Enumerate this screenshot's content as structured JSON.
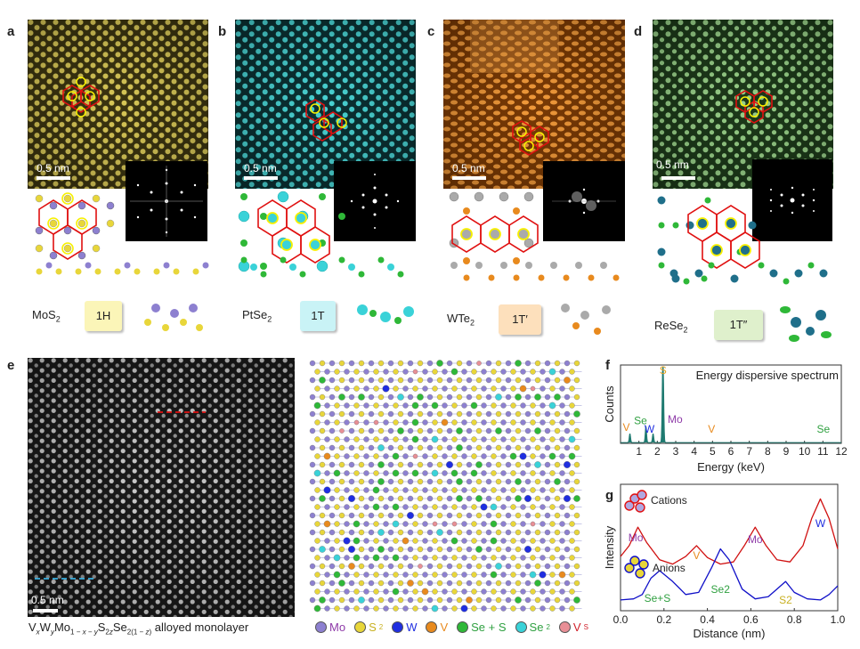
{
  "panels": {
    "a": {
      "letter": "a",
      "scale": "0.5 nm",
      "material": "MoS",
      "material_sub": "2",
      "phase": "1H"
    },
    "b": {
      "letter": "b",
      "scale": "0.5 nm",
      "material": "PtSe",
      "material_sub": "2",
      "phase": "1T"
    },
    "c": {
      "letter": "c",
      "scale": "0.5 nm",
      "material": "WTe",
      "material_sub": "2",
      "phase": "1T′"
    },
    "d": {
      "letter": "d",
      "scale": "0.5 nm",
      "material": "ReSe",
      "material_sub": "2",
      "phase": "1T″"
    },
    "e": {
      "letter": "e",
      "scale": "0.5 nm",
      "caption_tail": " alloyed monolayer"
    },
    "f": {
      "letter": "f"
    },
    "g": {
      "letter": "g"
    }
  },
  "colors": {
    "a": "#c8b84a",
    "b": "#3fc9c9",
    "c": "#f08a1e",
    "d": "#86c478",
    "phase_a": "#fbf5b8",
    "phase_b": "#c9f3f6",
    "phase_c": "#fde0bc",
    "phase_d": "#dff0cc",
    "mo": "#8d80d0",
    "s": "#e8d63a",
    "w": "#1f2ee0",
    "v": "#e88a1e",
    "se": "#2fb838",
    "se2": "#3ad2d8",
    "vs": "#e88f96"
  },
  "legend": [
    {
      "name": "legend-mo",
      "label": "Mo",
      "color": "#8d80d0"
    },
    {
      "name": "legend-s2",
      "label": "S",
      "sub": "2",
      "color": "#e8d63a"
    },
    {
      "name": "legend-w",
      "label": "W",
      "color": "#1f2ee0"
    },
    {
      "name": "legend-v",
      "label": "V",
      "color": "#e88a1e"
    },
    {
      "name": "legend-se-s",
      "label": "Se + S",
      "color": "#2fb838"
    },
    {
      "name": "legend-se2",
      "label": "Se",
      "sub": "2",
      "color": "#3ad2d8"
    },
    {
      "name": "legend-vs",
      "label": "V",
      "sub": "S",
      "color": "#e88f96"
    }
  ],
  "chart_data": [
    {
      "type": "line",
      "title": "Energy dispersive spectrum",
      "xlabel": "Energy (keV)",
      "ylabel": "Counts",
      "xlim": [
        0,
        12
      ],
      "xticks": [
        1,
        2,
        3,
        4,
        5,
        6,
        7,
        8,
        9,
        10,
        11,
        12
      ],
      "peaks": [
        {
          "label": "S",
          "x": 2.31,
          "y": 1.0
        },
        {
          "label": "Mo",
          "x": 2.29,
          "y": 0.25
        },
        {
          "label": "Se",
          "x": 1.38,
          "y": 0.22
        },
        {
          "label": "W",
          "x": 1.77,
          "y": 0.12
        },
        {
          "label": "V",
          "x": 0.51,
          "y": 0.12
        },
        {
          "label": "V",
          "x": 4.95,
          "y": 0.0
        },
        {
          "label": "Se",
          "x": 11.22,
          "y": 0.0
        }
      ]
    },
    {
      "type": "line",
      "xlabel": "Distance (nm)",
      "ylabel": "Intensity",
      "xlim": [
        0,
        1.0
      ],
      "xticks": [
        "0.0",
        "0.2",
        "0.4",
        "0.6",
        "0.8",
        "1.0"
      ],
      "series": [
        {
          "name": "Cations",
          "color": "#d01010",
          "x": [
            0,
            0.04,
            0.08,
            0.12,
            0.18,
            0.24,
            0.3,
            0.35,
            0.4,
            0.46,
            0.52,
            0.57,
            0.62,
            0.67,
            0.72,
            0.78,
            0.84,
            0.88,
            0.92,
            0.96,
            1.0
          ],
          "y": [
            0.45,
            0.55,
            0.72,
            0.58,
            0.42,
            0.38,
            0.45,
            0.55,
            0.44,
            0.38,
            0.4,
            0.55,
            0.72,
            0.55,
            0.42,
            0.4,
            0.55,
            0.8,
            0.98,
            0.8,
            0.52
          ]
        },
        {
          "name": "Anions",
          "color": "#1010c8",
          "x": [
            0,
            0.06,
            0.1,
            0.14,
            0.18,
            0.24,
            0.3,
            0.36,
            0.42,
            0.46,
            0.5,
            0.56,
            0.62,
            0.68,
            0.72,
            0.76,
            0.8,
            0.86,
            0.92,
            0.96,
            1.0
          ],
          "y": [
            0.05,
            0.06,
            0.1,
            0.25,
            0.32,
            0.22,
            0.1,
            0.12,
            0.35,
            0.52,
            0.42,
            0.15,
            0.06,
            0.08,
            0.15,
            0.22,
            0.12,
            0.06,
            0.05,
            0.1,
            0.18
          ]
        }
      ],
      "annotations": [
        {
          "label": "Mo",
          "x": 0.07,
          "color": "#8e3aa8"
        },
        {
          "label": "V",
          "x": 0.35,
          "color": "#e88a1e"
        },
        {
          "label": "Mo",
          "x": 0.62,
          "color": "#8e3aa8"
        },
        {
          "label": "W",
          "x": 0.92,
          "color": "#1f2ee0"
        },
        {
          "label": "Se+S",
          "x": 0.17,
          "color": "#2fa040"
        },
        {
          "label": "Se2",
          "x": 0.46,
          "color": "#2fa040"
        },
        {
          "label": "S2",
          "x": 0.76,
          "color": "#c8b020"
        }
      ]
    }
  ]
}
